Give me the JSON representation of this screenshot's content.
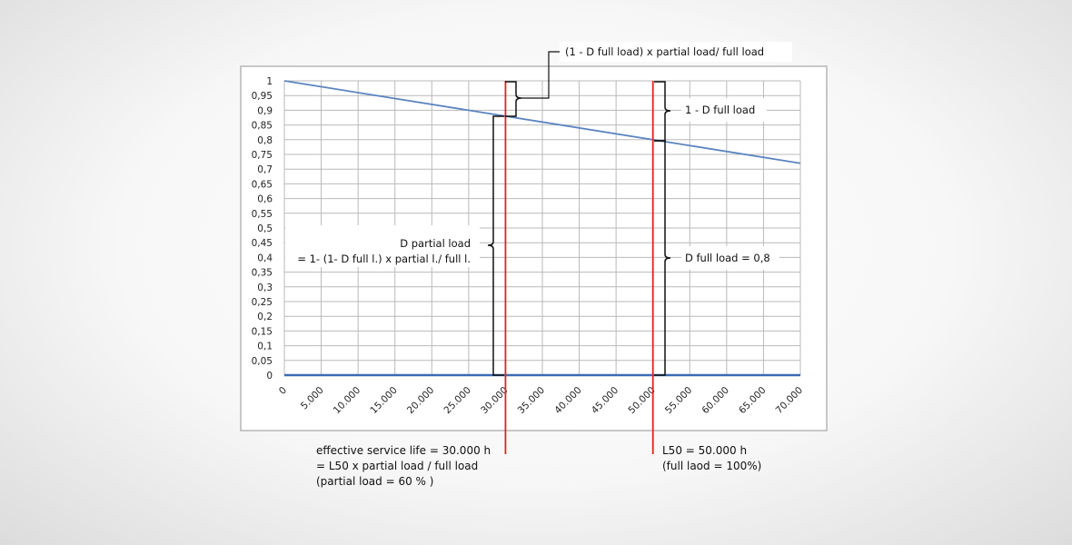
{
  "chart_data": {
    "type": "line",
    "x_ticks": [
      "0",
      "5.000",
      "10.000",
      "15.000",
      "20.000",
      "25.000",
      "30.000",
      "35.000",
      "40.000",
      "45.000",
      "50.000",
      "55.000",
      "60.000",
      "65.000",
      "70.000"
    ],
    "y_ticks": [
      "1",
      "0,95",
      "0,9",
      "0,85",
      "0,8",
      "0,75",
      "0,7",
      "0,65",
      "0,6",
      "0,55",
      "0,5",
      "0,45",
      "0,4",
      "0,35",
      "0,3",
      "0,25",
      "0,2",
      "0,15",
      "0,1",
      "0,05",
      "0"
    ],
    "xlim": [
      0,
      70000
    ],
    "ylim": [
      0,
      1
    ],
    "grid": true,
    "series": [
      {
        "x": [
          0,
          70000
        ],
        "y": [
          1,
          0.72
        ],
        "color": "#5b84c0"
      },
      {
        "x": [
          0,
          70000
        ],
        "y": [
          0,
          0
        ],
        "color": "#3a6bb5"
      }
    ],
    "vlines": [
      {
        "x": 30000,
        "color": "#e8201c"
      },
      {
        "x": 50000,
        "color": "#e8201c"
      }
    ],
    "annotations": {
      "top_bracket": "(1 - D full load) x partial load/ full load",
      "right_top": "1 - D full load",
      "right_bottom": "D full load = 0,8",
      "left_line1": "D partial load",
      "left_line2": "= 1- (1- D full l.) x partial l./ full l."
    },
    "below_left": [
      "effective service life = 30.000 h",
      "= L50 x partial load / full load",
      "(partial load = 60 % )"
    ],
    "below_right": [
      "L50 = 50.000 h",
      "(full laod = 100%)"
    ]
  }
}
